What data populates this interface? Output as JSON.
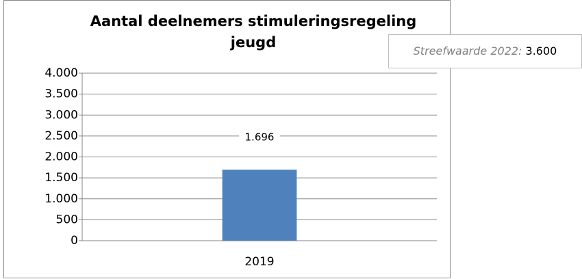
{
  "chart_data": {
    "type": "bar",
    "title": "Aantal deelnemers stimuleringsregeling jeugd",
    "categories": [
      "2019"
    ],
    "values": [
      1696
    ],
    "value_labels": [
      "1.696"
    ],
    "color": "#4f81bd",
    "ylim": [
      0,
      4000
    ],
    "yticks": [
      0,
      500,
      {
        "value": 1000,
        "label": "1.000"
      },
      {
        "value": 1500,
        "label": "1.500"
      },
      {
        "value": 2000,
        "label": "2.000"
      },
      {
        "value": 2500,
        "label": "2.500"
      },
      {
        "value": 3000,
        "label": "3.000"
      },
      {
        "value": 3500,
        "label": "3.500"
      },
      {
        "value": 4000,
        "label": "4.000"
      }
    ],
    "grid": true,
    "annotation": {
      "label": "Streefwaarde 2022:",
      "value": "3.600"
    }
  }
}
